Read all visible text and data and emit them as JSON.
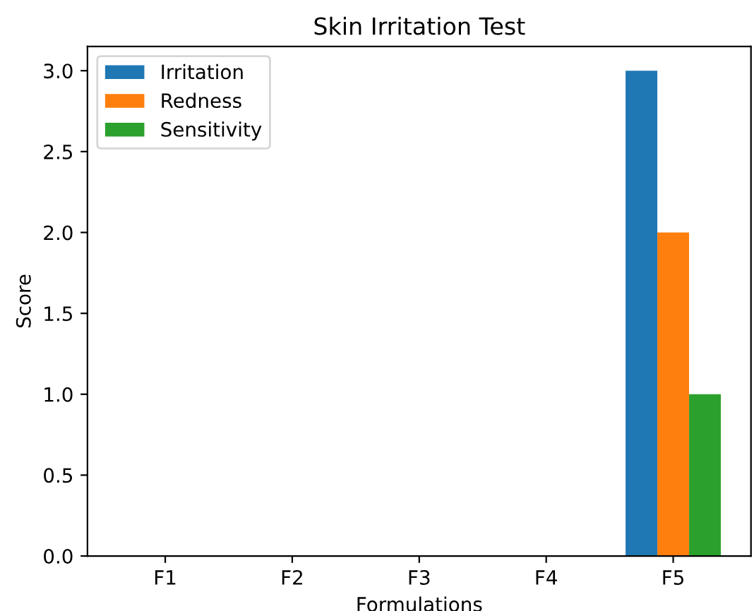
{
  "chart_data": {
    "type": "bar",
    "title": "Skin Irritation Test",
    "xlabel": "Formulations",
    "ylabel": "Score",
    "categories": [
      "F1",
      "F2",
      "F3",
      "F4",
      "F5"
    ],
    "series": [
      {
        "name": "Irritation",
        "color": "#1f77b4",
        "values": [
          0,
          0,
          0,
          0,
          3.0
        ]
      },
      {
        "name": "Redness",
        "color": "#ff7f0e",
        "values": [
          0,
          0,
          0,
          0,
          2.0
        ]
      },
      {
        "name": "Sensitivity",
        "color": "#2ca02c",
        "values": [
          0,
          0,
          0,
          0,
          1.0
        ]
      }
    ],
    "ylim": [
      0,
      3.15
    ],
    "yticks": [
      {
        "value": 0,
        "label": "0.0"
      },
      {
        "value": 0.5,
        "label": "0.5"
      },
      {
        "value": 1,
        "label": "1.0"
      },
      {
        "value": 1.5,
        "label": "1.5"
      },
      {
        "value": 2,
        "label": "2.0"
      },
      {
        "value": 2.5,
        "label": "2.5"
      },
      {
        "value": 3,
        "label": "3.0"
      }
    ],
    "legend": "top left",
    "grid": false
  }
}
